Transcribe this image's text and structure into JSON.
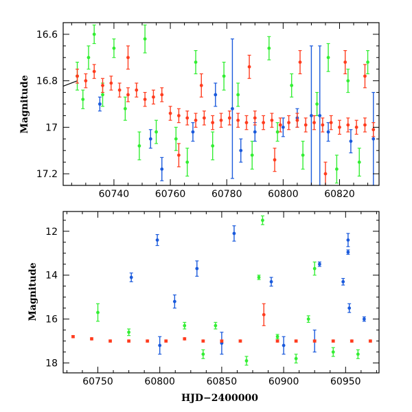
{
  "chart_data": [
    {
      "type": "scatter",
      "panel": "top",
      "title": "",
      "xlabel": "",
      "ylabel": "Magnitude",
      "xlim": [
        60722,
        60834
      ],
      "ylim": [
        17.25,
        16.55
      ],
      "y_inverted": true,
      "xticks": [
        60740,
        60760,
        60780,
        60800,
        60820
      ],
      "xtick_labels": [
        "60740",
        "60760",
        "60780",
        "60800",
        "60820"
      ],
      "yticks": [
        16.6,
        16.8,
        17.0,
        17.2
      ],
      "ytick_labels": [
        "16.6",
        "16.8",
        "17",
        "17.2"
      ],
      "trend_line": {
        "x": [
          60722,
          60727
        ],
        "y": [
          16.83,
          16.8
        ]
      },
      "series": [
        {
          "name": "green",
          "color": "#33ee33",
          "points": [
            {
              "x": 60727,
              "y": 16.78,
              "err": 0.06
            },
            {
              "x": 60729,
              "y": 16.88,
              "err": 0.04
            },
            {
              "x": 60731,
              "y": 16.7,
              "err": 0.05
            },
            {
              "x": 60733,
              "y": 16.6,
              "err": 0.04
            },
            {
              "x": 60736,
              "y": 16.86,
              "err": 0.05
            },
            {
              "x": 60740,
              "y": 16.66,
              "err": 0.04
            },
            {
              "x": 60744,
              "y": 16.92,
              "err": 0.05
            },
            {
              "x": 60749,
              "y": 17.08,
              "err": 0.06
            },
            {
              "x": 60751,
              "y": 16.62,
              "err": 0.06
            },
            {
              "x": 60755,
              "y": 17.02,
              "err": 0.05
            },
            {
              "x": 60762,
              "y": 17.05,
              "err": 0.05
            },
            {
              "x": 60766,
              "y": 17.15,
              "err": 0.06
            },
            {
              "x": 60769,
              "y": 16.72,
              "err": 0.05
            },
            {
              "x": 60775,
              "y": 17.08,
              "err": 0.06
            },
            {
              "x": 60779,
              "y": 16.78,
              "err": 0.06
            },
            {
              "x": 60784,
              "y": 16.86,
              "err": 0.05
            },
            {
              "x": 60789,
              "y": 17.12,
              "err": 0.06
            },
            {
              "x": 60795,
              "y": 16.66,
              "err": 0.05
            },
            {
              "x": 60798,
              "y": 17.02,
              "err": 0.04
            },
            {
              "x": 60803,
              "y": 16.82,
              "err": 0.05
            },
            {
              "x": 60807,
              "y": 17.12,
              "err": 0.06
            },
            {
              "x": 60812,
              "y": 16.9,
              "err": 0.05
            },
            {
              "x": 60816,
              "y": 16.7,
              "err": 0.06
            },
            {
              "x": 60819,
              "y": 17.18,
              "err": 0.06
            },
            {
              "x": 60823,
              "y": 16.8,
              "err": 0.05
            },
            {
              "x": 60827,
              "y": 17.15,
              "err": 0.06
            },
            {
              "x": 60830,
              "y": 16.72,
              "err": 0.05
            }
          ]
        },
        {
          "name": "blue",
          "color": "#1a5adc",
          "points": [
            {
              "x": 60735,
              "y": 16.9,
              "err": 0.03
            },
            {
              "x": 60753,
              "y": 17.05,
              "err": 0.04
            },
            {
              "x": 60757,
              "y": 17.18,
              "err": 0.05
            },
            {
              "x": 60768,
              "y": 17.02,
              "err": 0.04
            },
            {
              "x": 60776,
              "y": 16.86,
              "err": 0.05
            },
            {
              "x": 60782,
              "y": 16.92,
              "err": 0.3
            },
            {
              "x": 60785,
              "y": 17.1,
              "err": 0.05
            },
            {
              "x": 60790,
              "y": 17.02,
              "err": 0.04
            },
            {
              "x": 60800,
              "y": 17.0,
              "err": 0.04
            },
            {
              "x": 60805,
              "y": 16.96,
              "err": 0.04
            },
            {
              "x": 60810,
              "y": 16.95,
              "err": 0.3
            },
            {
              "x": 60813,
              "y": 16.95,
              "err": 0.3
            },
            {
              "x": 60816,
              "y": 17.02,
              "err": 0.04
            },
            {
              "x": 60824,
              "y": 17.06,
              "err": 0.05
            },
            {
              "x": 60832,
              "y": 17.05,
              "err": 0.2
            }
          ]
        },
        {
          "name": "red",
          "color": "#ff3c1e",
          "points": [
            {
              "x": 60727,
              "y": 16.78,
              "err": 0.03
            },
            {
              "x": 60730,
              "y": 16.8,
              "err": 0.03
            },
            {
              "x": 60733,
              "y": 16.76,
              "err": 0.03
            },
            {
              "x": 60736,
              "y": 16.82,
              "err": 0.03
            },
            {
              "x": 60739,
              "y": 16.81,
              "err": 0.03
            },
            {
              "x": 60742,
              "y": 16.84,
              "err": 0.03
            },
            {
              "x": 60745,
              "y": 16.86,
              "err": 0.03
            },
            {
              "x": 60748,
              "y": 16.84,
              "err": 0.03
            },
            {
              "x": 60751,
              "y": 16.88,
              "err": 0.03
            },
            {
              "x": 60754,
              "y": 16.87,
              "err": 0.03
            },
            {
              "x": 60757,
              "y": 16.86,
              "err": 0.03
            },
            {
              "x": 60760,
              "y": 16.94,
              "err": 0.03
            },
            {
              "x": 60763,
              "y": 16.95,
              "err": 0.03
            },
            {
              "x": 60766,
              "y": 16.96,
              "err": 0.03
            },
            {
              "x": 60769,
              "y": 16.97,
              "err": 0.03
            },
            {
              "x": 60772,
              "y": 16.96,
              "err": 0.03
            },
            {
              "x": 60775,
              "y": 16.98,
              "err": 0.03
            },
            {
              "x": 60778,
              "y": 16.97,
              "err": 0.03
            },
            {
              "x": 60781,
              "y": 16.96,
              "err": 0.03
            },
            {
              "x": 60784,
              "y": 16.97,
              "err": 0.03
            },
            {
              "x": 60787,
              "y": 16.98,
              "err": 0.03
            },
            {
              "x": 60790,
              "y": 16.96,
              "err": 0.03
            },
            {
              "x": 60793,
              "y": 16.98,
              "err": 0.03
            },
            {
              "x": 60796,
              "y": 16.97,
              "err": 0.03
            },
            {
              "x": 60799,
              "y": 16.99,
              "err": 0.03
            },
            {
              "x": 60802,
              "y": 16.98,
              "err": 0.03
            },
            {
              "x": 60805,
              "y": 16.97,
              "err": 0.03
            },
            {
              "x": 60808,
              "y": 16.99,
              "err": 0.03
            },
            {
              "x": 60811,
              "y": 16.98,
              "err": 0.03
            },
            {
              "x": 60814,
              "y": 16.99,
              "err": 0.03
            },
            {
              "x": 60817,
              "y": 16.98,
              "err": 0.03
            },
            {
              "x": 60820,
              "y": 17.0,
              "err": 0.03
            },
            {
              "x": 60823,
              "y": 16.99,
              "err": 0.03
            },
            {
              "x": 60826,
              "y": 17.0,
              "err": 0.03
            },
            {
              "x": 60829,
              "y": 16.99,
              "err": 0.03
            },
            {
              "x": 60832,
              "y": 17.01,
              "err": 0.03
            },
            {
              "x": 60745,
              "y": 16.7,
              "err": 0.05
            },
            {
              "x": 60763,
              "y": 17.12,
              "err": 0.05
            },
            {
              "x": 60771,
              "y": 16.82,
              "err": 0.05
            },
            {
              "x": 60788,
              "y": 16.74,
              "err": 0.05
            },
            {
              "x": 60797,
              "y": 17.14,
              "err": 0.05
            },
            {
              "x": 60806,
              "y": 16.72,
              "err": 0.05
            },
            {
              "x": 60815,
              "y": 17.2,
              "err": 0.05
            },
            {
              "x": 60822,
              "y": 16.72,
              "err": 0.05
            },
            {
              "x": 60829,
              "y": 16.78,
              "err": 0.05
            }
          ]
        }
      ]
    },
    {
      "type": "scatter",
      "panel": "bottom",
      "title": "",
      "xlabel": "HJD−2400000",
      "ylabel": "Magnitude",
      "xlim": [
        60722,
        60977
      ],
      "ylim": [
        18.45,
        11.1
      ],
      "y_inverted": true,
      "xticks": [
        60750,
        60800,
        60850,
        60900,
        60950
      ],
      "xtick_labels": [
        "60750",
        "60800",
        "60850",
        "60900",
        "60950"
      ],
      "yticks": [
        12,
        14,
        16,
        18
      ],
      "ytick_labels": [
        "12",
        "14",
        "16",
        "18"
      ],
      "series": [
        {
          "name": "green",
          "color": "#33ee33",
          "points": [
            {
              "x": 60750,
              "y": 15.7,
              "err": 0.4
            },
            {
              "x": 60775,
              "y": 16.6,
              "err": 0.15
            },
            {
              "x": 60820,
              "y": 16.3,
              "err": 0.15
            },
            {
              "x": 60835,
              "y": 17.6,
              "err": 0.2
            },
            {
              "x": 60845,
              "y": 16.3,
              "err": 0.15
            },
            {
              "x": 60870,
              "y": 17.9,
              "err": 0.2
            },
            {
              "x": 60880,
              "y": 14.1,
              "err": 0.1
            },
            {
              "x": 60883,
              "y": 11.5,
              "err": 0.2
            },
            {
              "x": 60895,
              "y": 16.8,
              "err": 0.1
            },
            {
              "x": 60910,
              "y": 17.8,
              "err": 0.2
            },
            {
              "x": 60920,
              "y": 16.0,
              "err": 0.15
            },
            {
              "x": 60925,
              "y": 13.7,
              "err": 0.3
            },
            {
              "x": 60940,
              "y": 17.5,
              "err": 0.2
            },
            {
              "x": 60960,
              "y": 17.6,
              "err": 0.2
            }
          ]
        },
        {
          "name": "blue",
          "color": "#1a5adc",
          "points": [
            {
              "x": 60777,
              "y": 14.1,
              "err": 0.2
            },
            {
              "x": 60798,
              "y": 12.4,
              "err": 0.25
            },
            {
              "x": 60812,
              "y": 15.2,
              "err": 0.3
            },
            {
              "x": 60830,
              "y": 13.7,
              "err": 0.35
            },
            {
              "x": 60860,
              "y": 12.1,
              "err": 0.35
            },
            {
              "x": 60890,
              "y": 14.3,
              "err": 0.2
            },
            {
              "x": 60900,
              "y": 17.2,
              "err": 0.4
            },
            {
              "x": 60929,
              "y": 13.5,
              "err": 0.1
            },
            {
              "x": 60948,
              "y": 14.3,
              "err": 0.15
            },
            {
              "x": 60952,
              "y": 12.4,
              "err": 0.3
            },
            {
              "x": 60952,
              "y": 12.95,
              "err": 0.1
            },
            {
              "x": 60953,
              "y": 15.5,
              "err": 0.2
            },
            {
              "x": 60965,
              "y": 16.0,
              "err": 0.1
            },
            {
              "x": 60925,
              "y": 17.0,
              "err": 0.5
            },
            {
              "x": 60800,
              "y": 17.2,
              "err": 0.4
            },
            {
              "x": 60850,
              "y": 17.1,
              "err": 0.5
            }
          ]
        },
        {
          "name": "red",
          "color": "#ff3c1e",
          "points": [
            {
              "x": 60730,
              "y": 16.8,
              "err": 0.05
            },
            {
              "x": 60745,
              "y": 16.9,
              "err": 0.05
            },
            {
              "x": 60760,
              "y": 17.0,
              "err": 0.05
            },
            {
              "x": 60775,
              "y": 17.0,
              "err": 0.05
            },
            {
              "x": 60790,
              "y": 17.0,
              "err": 0.05
            },
            {
              "x": 60805,
              "y": 17.0,
              "err": 0.05
            },
            {
              "x": 60820,
              "y": 16.9,
              "err": 0.05
            },
            {
              "x": 60835,
              "y": 17.0,
              "err": 0.05
            },
            {
              "x": 60850,
              "y": 17.0,
              "err": 0.05
            },
            {
              "x": 60865,
              "y": 17.0,
              "err": 0.05
            },
            {
              "x": 60884,
              "y": 15.8,
              "err": 0.5
            },
            {
              "x": 60895,
              "y": 17.0,
              "err": 0.05
            },
            {
              "x": 60910,
              "y": 17.0,
              "err": 0.05
            },
            {
              "x": 60925,
              "y": 17.0,
              "err": 0.05
            },
            {
              "x": 60940,
              "y": 17.0,
              "err": 0.05
            },
            {
              "x": 60955,
              "y": 17.0,
              "err": 0.05
            },
            {
              "x": 60970,
              "y": 17.0,
              "err": 0.05
            }
          ]
        }
      ]
    }
  ]
}
